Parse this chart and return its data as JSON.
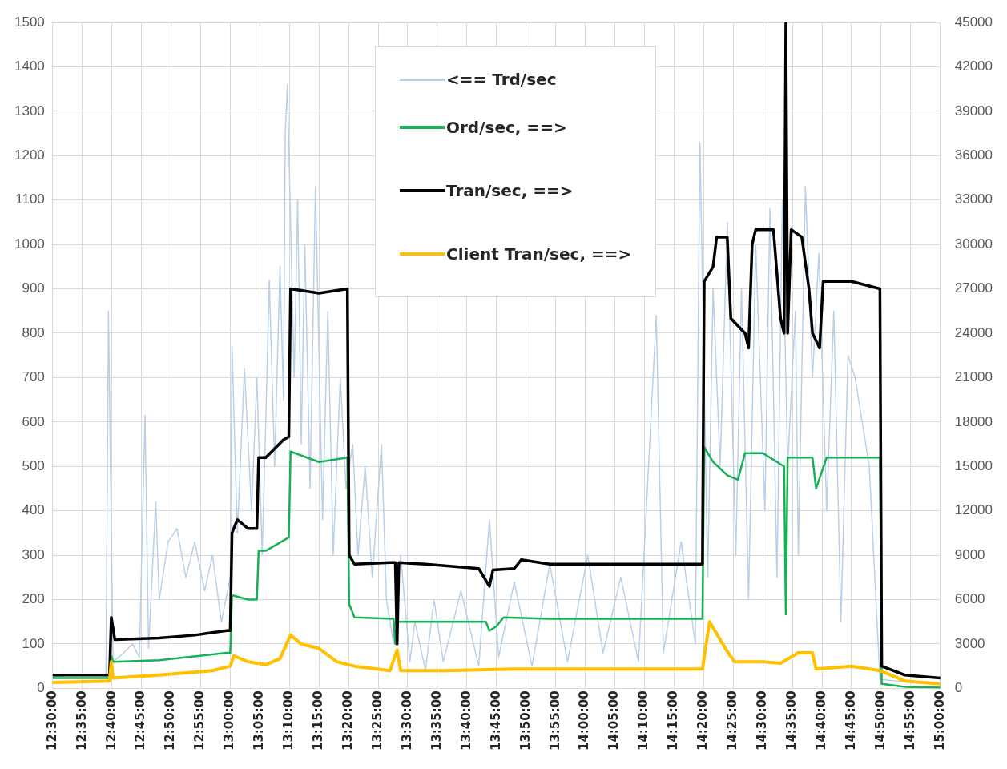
{
  "chart_data": {
    "type": "line",
    "xlim": [
      12.5,
      15.0
    ],
    "xticks": [
      {
        "value": 12.5,
        "label": "12:30:00"
      },
      {
        "value": 12.583333,
        "label": "12:35:00"
      },
      {
        "value": 12.666667,
        "label": "12:40:00"
      },
      {
        "value": 12.75,
        "label": "12:45:00"
      },
      {
        "value": 12.833333,
        "label": "12:50:00"
      },
      {
        "value": 12.916667,
        "label": "12:55:00"
      },
      {
        "value": 13.0,
        "label": "13:00:00"
      },
      {
        "value": 13.083333,
        "label": "13:05:00"
      },
      {
        "value": 13.166667,
        "label": "13:10:00"
      },
      {
        "value": 13.25,
        "label": "13:15:00"
      },
      {
        "value": 13.333333,
        "label": "13:20:00"
      },
      {
        "value": 13.416667,
        "label": "13:25:00"
      },
      {
        "value": 13.5,
        "label": "13:30:00"
      },
      {
        "value": 13.583333,
        "label": "13:35:00"
      },
      {
        "value": 13.666667,
        "label": "13:40:00"
      },
      {
        "value": 13.75,
        "label": "13:45:00"
      },
      {
        "value": 13.833333,
        "label": "13:50:00"
      },
      {
        "value": 13.916667,
        "label": "13:55:00"
      },
      {
        "value": 14.0,
        "label": "14:00:00"
      },
      {
        "value": 14.083333,
        "label": "14:05:00"
      },
      {
        "value": 14.166667,
        "label": "14:10:00"
      },
      {
        "value": 14.25,
        "label": "14:15:00"
      },
      {
        "value": 14.333333,
        "label": "14:20:00"
      },
      {
        "value": 14.416667,
        "label": "14:25:00"
      },
      {
        "value": 14.5,
        "label": "14:30:00"
      },
      {
        "value": 14.583333,
        "label": "14:35:00"
      },
      {
        "value": 14.666667,
        "label": "14:40:00"
      },
      {
        "value": 14.75,
        "label": "14:45:00"
      },
      {
        "value": 14.833333,
        "label": "14:50:00"
      },
      {
        "value": 14.916667,
        "label": "14:55:00"
      },
      {
        "value": 15.0,
        "label": "15:00:00"
      }
    ],
    "ylim": [
      0,
      1500
    ],
    "yticks": [
      0,
      100,
      200,
      300,
      400,
      500,
      600,
      700,
      800,
      900,
      1000,
      1100,
      1200,
      1300,
      1400,
      1500
    ],
    "y2lim": [
      0,
      45000
    ],
    "y2ticks": [
      0,
      3000,
      6000,
      9000,
      12000,
      15000,
      18000,
      21000,
      24000,
      27000,
      30000,
      33000,
      36000,
      39000,
      42000,
      45000
    ],
    "grid": true,
    "legend": "top",
    "series": [
      {
        "name": "<== Trd/sec",
        "color": "#b9d0e9",
        "x": [
          12.5,
          12.55,
          12.6,
          12.65,
          12.657,
          12.67,
          12.7,
          12.725,
          12.744,
          12.76,
          12.77,
          12.79,
          12.8,
          12.825,
          12.85,
          12.875,
          12.9,
          12.928,
          12.95,
          12.975,
          13.0,
          13.005,
          13.02,
          13.04,
          13.06,
          13.075,
          13.09,
          13.1,
          13.11,
          13.125,
          13.14,
          13.15,
          13.155,
          13.161,
          13.18,
          13.19,
          13.2,
          13.21,
          13.225,
          13.24,
          13.26,
          13.275,
          13.29,
          13.31,
          13.326,
          13.345,
          13.36,
          13.38,
          13.4,
          13.426,
          13.44,
          13.46,
          13.48,
          13.506,
          13.52,
          13.55,
          13.574,
          13.6,
          13.65,
          13.7,
          13.73,
          13.756,
          13.8,
          13.85,
          13.9,
          13.95,
          14.007,
          14.05,
          14.1,
          14.15,
          14.2,
          14.22,
          14.27,
          14.31,
          14.323,
          14.345,
          14.36,
          14.38,
          14.4,
          14.424,
          14.44,
          14.46,
          14.48,
          14.506,
          14.52,
          14.54,
          14.555,
          14.57,
          14.592,
          14.6,
          14.62,
          14.64,
          14.658,
          14.68,
          14.7,
          14.72,
          14.74,
          14.76,
          14.8,
          14.83,
          14.9,
          15.0
        ],
        "values": [
          25,
          30,
          30,
          28,
          850,
          60,
          80,
          100,
          70,
          615,
          90,
          420,
          200,
          330,
          360,
          250,
          330,
          220,
          300,
          150,
          250,
          770,
          350,
          720,
          400,
          700,
          300,
          600,
          920,
          500,
          950,
          650,
          1250,
          1360,
          700,
          1100,
          550,
          1000,
          450,
          1130,
          380,
          850,
          300,
          700,
          450,
          550,
          300,
          500,
          250,
          550,
          200,
          100,
          300,
          60,
          150,
          40,
          200,
          60,
          220,
          50,
          380,
          70,
          240,
          50,
          280,
          60,
          300,
          80,
          250,
          60,
          840,
          80,
          330,
          100,
          1230,
          250,
          900,
          500,
          1050,
          300,
          900,
          200,
          1000,
          400,
          1080,
          250,
          1100,
          500,
          850,
          300,
          1130,
          700,
          980,
          400,
          850,
          150,
          750,
          700,
          500,
          20,
          15,
          10
        ]
      },
      {
        "name": "Ord/sec, ==>",
        "color": "#16b055",
        "axis": "y2",
        "x": [
          12.5,
          12.66,
          12.665,
          12.67,
          12.8,
          12.99,
          13.0,
          13.005,
          13.05,
          13.075,
          13.08,
          13.1,
          13.165,
          13.17,
          13.25,
          13.33,
          13.335,
          13.35,
          13.46,
          13.465,
          13.47,
          13.6,
          13.72,
          13.73,
          13.75,
          13.77,
          13.9,
          14.33,
          14.335,
          14.36,
          14.4,
          14.43,
          14.45,
          14.5,
          14.56,
          14.565,
          14.57,
          14.6,
          14.64,
          14.65,
          14.68,
          14.8,
          14.83,
          14.835,
          14.9,
          15.0
        ],
        "values": [
          700,
          700,
          2200,
          1800,
          1900,
          2400,
          2400,
          6300,
          6000,
          6000,
          9300,
          9300,
          10200,
          16000,
          15300,
          15600,
          5700,
          4800,
          4700,
          3000,
          4500,
          4500,
          4500,
          3900,
          4200,
          4800,
          4700,
          4700,
          16300,
          15300,
          14400,
          14100,
          15900,
          15900,
          15000,
          5000,
          15600,
          15600,
          15600,
          13500,
          15600,
          15600,
          15600,
          300,
          100,
          50
        ]
      },
      {
        "name": "Tran/sec, ==>",
        "color": "#000000",
        "axis": "y2",
        "x": [
          12.5,
          12.66,
          12.665,
          12.675,
          12.8,
          12.9,
          12.99,
          13.0,
          13.005,
          13.02,
          13.05,
          13.075,
          13.08,
          13.1,
          13.15,
          13.165,
          13.17,
          13.25,
          13.33,
          13.335,
          13.35,
          13.45,
          13.465,
          13.47,
          13.475,
          13.55,
          13.7,
          13.73,
          13.74,
          13.8,
          13.82,
          13.9,
          14.0,
          14.1,
          14.2,
          14.33,
          14.335,
          14.36,
          14.37,
          14.4,
          14.41,
          14.45,
          14.46,
          14.47,
          14.48,
          14.53,
          14.55,
          14.56,
          14.565,
          14.57,
          14.58,
          14.61,
          14.63,
          14.64,
          14.66,
          14.67,
          14.7,
          14.75,
          14.83,
          14.835,
          14.9,
          15.0
        ],
        "values": [
          900,
          900,
          4800,
          3300,
          3400,
          3600,
          3900,
          3900,
          10500,
          11400,
          10800,
          10800,
          15600,
          15600,
          16800,
          17000,
          27000,
          26700,
          27000,
          9000,
          8400,
          8500,
          8500,
          3000,
          8500,
          8400,
          8100,
          6900,
          8000,
          8100,
          8700,
          8400,
          8400,
          8400,
          8400,
          8400,
          27500,
          28500,
          30500,
          30500,
          25000,
          24000,
          23000,
          30000,
          31000,
          31000,
          25000,
          24000,
          45000,
          24000,
          31000,
          30500,
          27000,
          24000,
          23000,
          27500,
          27500,
          27500,
          27000,
          1500,
          900,
          700
        ]
      },
      {
        "name": "Client Tran/sec, ==>",
        "color": "#ffc000",
        "axis": "y2",
        "x": [
          12.5,
          12.66,
          12.665,
          12.67,
          12.8,
          12.95,
          13.0,
          13.01,
          13.05,
          13.1,
          13.14,
          13.17,
          13.2,
          13.25,
          13.3,
          13.35,
          13.45,
          13.47,
          13.48,
          13.6,
          13.8,
          14.0,
          14.33,
          14.35,
          14.4,
          14.42,
          14.5,
          14.55,
          14.6,
          14.64,
          14.65,
          14.75,
          14.83,
          14.9,
          15.0
        ],
        "values": [
          400,
          500,
          1800,
          700,
          900,
          1200,
          1500,
          2200,
          1800,
          1600,
          2000,
          3600,
          3000,
          2700,
          1800,
          1500,
          1200,
          2600,
          1200,
          1200,
          1300,
          1300,
          1300,
          4500,
          2500,
          1800,
          1800,
          1700,
          2400,
          2400,
          1300,
          1500,
          1200,
          500,
          300
        ]
      }
    ]
  }
}
